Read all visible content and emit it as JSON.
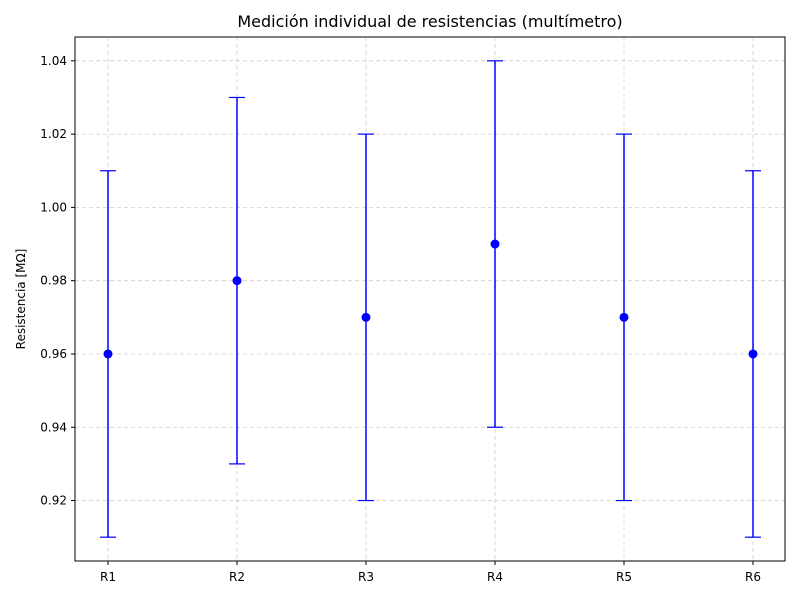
{
  "chart_data": {
    "type": "scatter",
    "title": "Medición individual de resistencias (multímetro)",
    "xlabel": "",
    "ylabel": "Resistencia [MΩ]",
    "categories": [
      "R1",
      "R2",
      "R3",
      "R4",
      "R5",
      "R6"
    ],
    "values": [
      0.96,
      0.98,
      0.97,
      0.99,
      0.97,
      0.96
    ],
    "errors": [
      0.05,
      0.05,
      0.05,
      0.05,
      0.05,
      0.05
    ],
    "ylim": [
      0.9035,
      1.0465
    ],
    "yticks": [
      0.92,
      0.94,
      0.96,
      0.98,
      1.0,
      1.02,
      1.04
    ],
    "ytick_labels": [
      "0.92",
      "0.94",
      "0.96",
      "0.98",
      "1.00",
      "1.02",
      "1.04"
    ],
    "grid": true,
    "marker_style": "errorbar-with-point",
    "color": "#0000ff"
  }
}
